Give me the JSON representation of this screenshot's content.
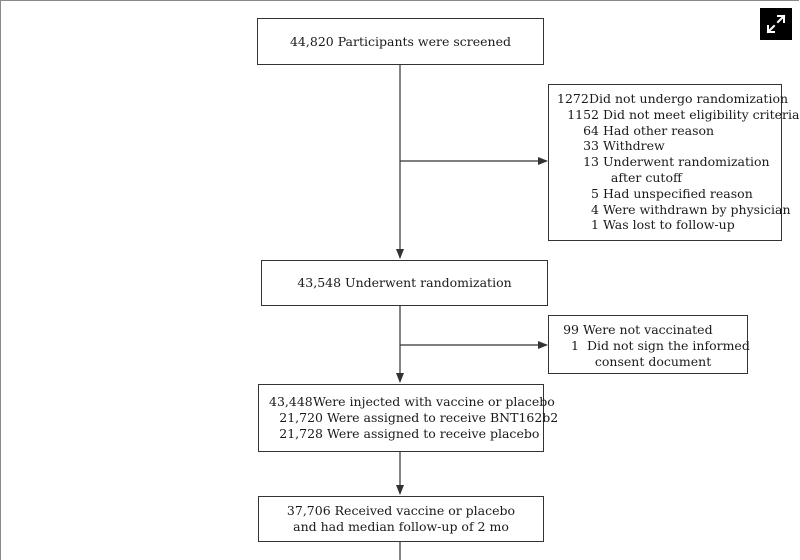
{
  "flowchart": {
    "screened": {
      "lines": [
        "44,820 Participants were screened"
      ]
    },
    "excluded_screening": {
      "rows": [
        {
          "num": "1272",
          "text": "Did not undergo randomization"
        },
        {
          "num": "1152",
          "text": "Did not meet eligibility criteria"
        },
        {
          "num": "64",
          "text": "Had other reason"
        },
        {
          "num": "33",
          "text": "Withdrew"
        },
        {
          "num": "13",
          "text": "Underwent randomization"
        },
        {
          "num": "",
          "text": "after cutoff"
        },
        {
          "num": "5",
          "text": "Had unspecified reason"
        },
        {
          "num": "4",
          "text": "Were withdrawn by physician"
        },
        {
          "num": "1",
          "text": "Was lost to follow-up"
        }
      ]
    },
    "randomized": {
      "lines": [
        "43,548 Underwent randomization"
      ]
    },
    "not_vaccinated": {
      "rows": [
        {
          "num": "99",
          "text": "Were not vaccinated"
        },
        {
          "num": "1",
          "text": "Did not sign the informed"
        },
        {
          "num": "",
          "text": "consent document"
        }
      ]
    },
    "injected": {
      "rows": [
        {
          "num": "43,448",
          "text": "Were injected with vaccine or placebo"
        },
        {
          "num": "21,720",
          "text": "Were assigned to receive BNT162b2"
        },
        {
          "num": "21,728",
          "text": "Were assigned to receive placebo"
        }
      ]
    },
    "followup": {
      "lines": [
        "37,706 Received vaccine or placebo",
        "and had median follow-up of 2 mo"
      ]
    }
  },
  "toolbar": {
    "expand_icon": "expand-icon"
  }
}
